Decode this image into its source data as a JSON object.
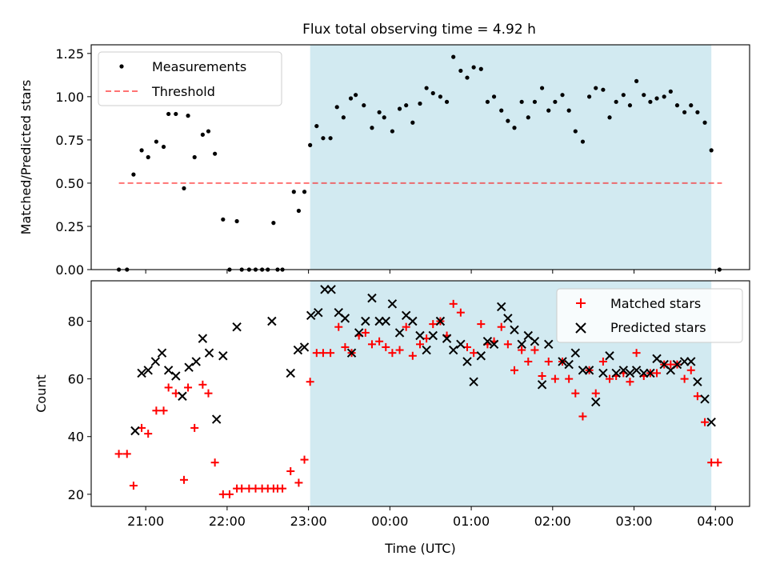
{
  "title": "Flux total observing time = 4.92 h",
  "colors": {
    "shade": "#add8e6",
    "threshold": "#ff0000",
    "measurement": "#000000",
    "matched": "#ff0000",
    "predicted": "#000000"
  },
  "x_tick_labels": [
    "21:00",
    "22:00",
    "23:00",
    "00:00",
    "01:00",
    "02:00",
    "03:00",
    "04:00"
  ],
  "chart_data": [
    {
      "type": "scatter",
      "ylabel": "Matched/Predicted stars",
      "ylim": [
        0,
        1.3
      ],
      "y_tick_labels": [
        "0.00",
        "0.25",
        "0.50",
        "0.75",
        "1.00",
        "1.25"
      ],
      "xlim_hours": [
        20.33,
        28.42
      ],
      "shaded_span_hours": [
        23.02,
        27.95
      ],
      "threshold": 0.5,
      "threshold_span_hours": [
        20.67,
        28.08
      ],
      "legend": {
        "placement": "upper-left",
        "entries": [
          "Measurements",
          "Threshold"
        ]
      },
      "series": [
        {
          "name": "Measurements",
          "points": [
            [
              20.67,
              0
            ],
            [
              20.77,
              0
            ],
            [
              20.85,
              0.55
            ],
            [
              20.95,
              0.69
            ],
            [
              21.03,
              0.65
            ],
            [
              21.13,
              0.74
            ],
            [
              21.22,
              0.71
            ],
            [
              21.28,
              0.9
            ],
            [
              21.37,
              0.9
            ],
            [
              21.47,
              0.47
            ],
            [
              21.52,
              0.89
            ],
            [
              21.6,
              0.65
            ],
            [
              21.7,
              0.78
            ],
            [
              21.77,
              0.8
            ],
            [
              21.85,
              0.67
            ],
            [
              21.95,
              0.29
            ],
            [
              22.03,
              0
            ],
            [
              22.12,
              0.28
            ],
            [
              22.18,
              0
            ],
            [
              22.27,
              0
            ],
            [
              22.35,
              0
            ],
            [
              22.43,
              0
            ],
            [
              22.5,
              0
            ],
            [
              22.57,
              0.27
            ],
            [
              22.62,
              0
            ],
            [
              22.68,
              0
            ],
            [
              22.82,
              0.45
            ],
            [
              22.88,
              0.34
            ],
            [
              22.95,
              0.45
            ],
            [
              23.02,
              0.72
            ],
            [
              23.1,
              0.83
            ],
            [
              23.18,
              0.76
            ],
            [
              23.27,
              0.76
            ],
            [
              23.35,
              0.94
            ],
            [
              23.43,
              0.88
            ],
            [
              23.52,
              0.99
            ],
            [
              23.58,
              1.01
            ],
            [
              23.68,
              0.95
            ],
            [
              23.78,
              0.82
            ],
            [
              23.87,
              0.91
            ],
            [
              23.93,
              0.88
            ],
            [
              24.03,
              0.8
            ],
            [
              24.12,
              0.93
            ],
            [
              24.2,
              0.95
            ],
            [
              24.28,
              0.85
            ],
            [
              24.37,
              0.96
            ],
            [
              24.45,
              1.05
            ],
            [
              24.53,
              1.02
            ],
            [
              24.62,
              1.0
            ],
            [
              24.7,
              0.97
            ],
            [
              24.78,
              1.23
            ],
            [
              24.87,
              1.15
            ],
            [
              24.95,
              1.11
            ],
            [
              25.03,
              1.17
            ],
            [
              25.12,
              1.16
            ],
            [
              25.2,
              0.97
            ],
            [
              25.28,
              1.0
            ],
            [
              25.37,
              0.92
            ],
            [
              25.45,
              0.86
            ],
            [
              25.53,
              0.82
            ],
            [
              25.62,
              0.97
            ],
            [
              25.7,
              0.88
            ],
            [
              25.78,
              0.97
            ],
            [
              25.87,
              1.05
            ],
            [
              25.95,
              0.92
            ],
            [
              26.03,
              0.97
            ],
            [
              26.12,
              1.01
            ],
            [
              26.2,
              0.92
            ],
            [
              26.28,
              0.8
            ],
            [
              26.37,
              0.74
            ],
            [
              26.45,
              1.0
            ],
            [
              26.53,
              1.05
            ],
            [
              26.62,
              1.04
            ],
            [
              26.7,
              0.88
            ],
            [
              26.78,
              0.97
            ],
            [
              26.87,
              1.01
            ],
            [
              26.95,
              0.95
            ],
            [
              27.03,
              1.09
            ],
            [
              27.12,
              1.01
            ],
            [
              27.2,
              0.97
            ],
            [
              27.28,
              0.99
            ],
            [
              27.37,
              1.0
            ],
            [
              27.45,
              1.03
            ],
            [
              27.53,
              0.95
            ],
            [
              27.62,
              0.91
            ],
            [
              27.7,
              0.95
            ],
            [
              27.78,
              0.91
            ],
            [
              27.87,
              0.85
            ],
            [
              27.95,
              0.69
            ],
            [
              28.05,
              0
            ]
          ]
        }
      ]
    },
    {
      "type": "scatter",
      "xlabel": "Time (UTC)",
      "ylabel": "Count",
      "ylim": [
        15.8,
        94
      ],
      "y_tick_labels": [
        "20",
        "40",
        "60",
        "80"
      ],
      "xlim_hours": [
        20.33,
        28.42
      ],
      "shaded_span_hours": [
        23.02,
        27.95
      ],
      "legend": {
        "placement": "upper-right",
        "entries": [
          "Matched stars",
          "Predicted stars"
        ]
      },
      "series": [
        {
          "name": "Matched stars",
          "marker": "plus",
          "points": [
            [
              20.67,
              34
            ],
            [
              20.77,
              34
            ],
            [
              20.85,
              23
            ],
            [
              20.95,
              43
            ],
            [
              21.03,
              41
            ],
            [
              21.13,
              49
            ],
            [
              21.22,
              49
            ],
            [
              21.28,
              57
            ],
            [
              21.37,
              55
            ],
            [
              21.47,
              25
            ],
            [
              21.52,
              57
            ],
            [
              21.6,
              43
            ],
            [
              21.7,
              58
            ],
            [
              21.77,
              55
            ],
            [
              21.85,
              31
            ],
            [
              21.95,
              20
            ],
            [
              22.03,
              20
            ],
            [
              22.12,
              22
            ],
            [
              22.18,
              22
            ],
            [
              22.27,
              22
            ],
            [
              22.35,
              22
            ],
            [
              22.43,
              22
            ],
            [
              22.5,
              22
            ],
            [
              22.57,
              22
            ],
            [
              22.62,
              22
            ],
            [
              22.68,
              22
            ],
            [
              22.78,
              28
            ],
            [
              22.88,
              24
            ],
            [
              22.95,
              32
            ],
            [
              23.02,
              59
            ],
            [
              23.1,
              69
            ],
            [
              23.18,
              69
            ],
            [
              23.27,
              69
            ],
            [
              23.37,
              78
            ],
            [
              23.45,
              71
            ],
            [
              23.53,
              69
            ],
            [
              23.62,
              75
            ],
            [
              23.7,
              76
            ],
            [
              23.78,
              72
            ],
            [
              23.87,
              73
            ],
            [
              23.95,
              71
            ],
            [
              24.03,
              69
            ],
            [
              24.12,
              70
            ],
            [
              24.2,
              78
            ],
            [
              24.28,
              68
            ],
            [
              24.37,
              72
            ],
            [
              24.45,
              74
            ],
            [
              24.53,
              79
            ],
            [
              24.62,
              80
            ],
            [
              24.7,
              75
            ],
            [
              24.78,
              86
            ],
            [
              24.87,
              83
            ],
            [
              24.95,
              71
            ],
            [
              25.03,
              69
            ],
            [
              25.12,
              79
            ],
            [
              25.2,
              72
            ],
            [
              25.28,
              73
            ],
            [
              25.37,
              78
            ],
            [
              25.45,
              72
            ],
            [
              25.53,
              63
            ],
            [
              25.62,
              70
            ],
            [
              25.7,
              66
            ],
            [
              25.78,
              70
            ],
            [
              25.87,
              61
            ],
            [
              25.95,
              66
            ],
            [
              26.03,
              60
            ],
            [
              26.12,
              66
            ],
            [
              26.2,
              60
            ],
            [
              26.28,
              55
            ],
            [
              26.37,
              47
            ],
            [
              26.45,
              63
            ],
            [
              26.53,
              55
            ],
            [
              26.62,
              66
            ],
            [
              26.7,
              60
            ],
            [
              26.78,
              61
            ],
            [
              26.87,
              62
            ],
            [
              26.95,
              59
            ],
            [
              27.03,
              69
            ],
            [
              27.12,
              61
            ],
            [
              27.2,
              62
            ],
            [
              27.28,
              62
            ],
            [
              27.37,
              65
            ],
            [
              27.45,
              65
            ],
            [
              27.53,
              65
            ],
            [
              27.62,
              60
            ],
            [
              27.7,
              63
            ],
            [
              27.78,
              54
            ],
            [
              27.87,
              45
            ],
            [
              27.95,
              31
            ],
            [
              28.03,
              31
            ]
          ]
        },
        {
          "name": "Predicted stars",
          "marker": "x",
          "points": [
            [
              20.87,
              42
            ],
            [
              20.95,
              62
            ],
            [
              21.03,
              63
            ],
            [
              21.12,
              66
            ],
            [
              21.2,
              69
            ],
            [
              21.28,
              63
            ],
            [
              21.37,
              61
            ],
            [
              21.45,
              54
            ],
            [
              21.53,
              64
            ],
            [
              21.62,
              66
            ],
            [
              21.7,
              74
            ],
            [
              21.78,
              69
            ],
            [
              21.87,
              46
            ],
            [
              21.95,
              68
            ],
            [
              22.12,
              78
            ],
            [
              22.55,
              80
            ],
            [
              22.78,
              62
            ],
            [
              22.87,
              70
            ],
            [
              22.95,
              71
            ],
            [
              23.03,
              82
            ],
            [
              23.12,
              83
            ],
            [
              23.2,
              91
            ],
            [
              23.28,
              91
            ],
            [
              23.37,
              83
            ],
            [
              23.45,
              81
            ],
            [
              23.53,
              69
            ],
            [
              23.62,
              76
            ],
            [
              23.7,
              80
            ],
            [
              23.78,
              88
            ],
            [
              23.87,
              80
            ],
            [
              23.95,
              80
            ],
            [
              24.03,
              86
            ],
            [
              24.12,
              76
            ],
            [
              24.2,
              82
            ],
            [
              24.28,
              80
            ],
            [
              24.37,
              75
            ],
            [
              24.45,
              70
            ],
            [
              24.53,
              75
            ],
            [
              24.62,
              80
            ],
            [
              24.7,
              74
            ],
            [
              24.78,
              70
            ],
            [
              24.87,
              72
            ],
            [
              24.95,
              66
            ],
            [
              25.03,
              59
            ],
            [
              25.12,
              68
            ],
            [
              25.2,
              73
            ],
            [
              25.28,
              72
            ],
            [
              25.37,
              85
            ],
            [
              25.45,
              81
            ],
            [
              25.53,
              77
            ],
            [
              25.62,
              72
            ],
            [
              25.7,
              75
            ],
            [
              25.78,
              73
            ],
            [
              25.87,
              58
            ],
            [
              25.95,
              72
            ],
            [
              26.12,
              66
            ],
            [
              26.2,
              65
            ],
            [
              26.28,
              69
            ],
            [
              26.37,
              63
            ],
            [
              26.45,
              63
            ],
            [
              26.53,
              52
            ],
            [
              26.62,
              62
            ],
            [
              26.7,
              68
            ],
            [
              26.78,
              62
            ],
            [
              26.87,
              63
            ],
            [
              26.95,
              62
            ],
            [
              27.03,
              63
            ],
            [
              27.12,
              62
            ],
            [
              27.2,
              62
            ],
            [
              27.28,
              67
            ],
            [
              27.37,
              65
            ],
            [
              27.45,
              63
            ],
            [
              27.53,
              65
            ],
            [
              27.62,
              66
            ],
            [
              27.7,
              66
            ],
            [
              27.78,
              59
            ],
            [
              27.87,
              53
            ],
            [
              27.95,
              45
            ]
          ]
        }
      ]
    }
  ]
}
